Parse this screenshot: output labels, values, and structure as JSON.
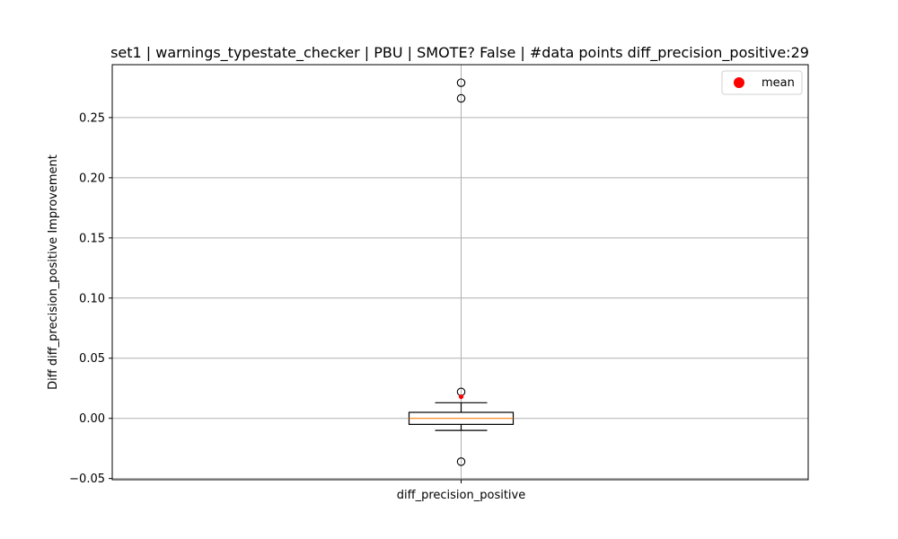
{
  "chart_data": {
    "type": "box",
    "title": "set1 | warnings_typestate_checker | PBU | SMOTE? False | #data points diff_precision_positive:29",
    "xlabel": "",
    "ylabel": "Diff diff_precision_positive Improvement",
    "categories": [
      "diff_precision_positive"
    ],
    "ylim": [
      -0.051,
      0.294
    ],
    "yticks": [
      -0.05,
      0.0,
      0.05,
      0.1,
      0.15,
      0.2,
      0.25
    ],
    "ytick_labels": [
      "−0.05",
      "0.00",
      "0.05",
      "0.10",
      "0.15",
      "0.20",
      "0.25"
    ],
    "grid": true,
    "legend": {
      "position": "top-right",
      "entries": [
        {
          "label": "mean",
          "color": "#ff0000",
          "marker": "circle"
        }
      ]
    },
    "box": {
      "category": "diff_precision_positive",
      "q1": -0.005,
      "median": 0.0,
      "q3": 0.005,
      "whisker_low": -0.01,
      "whisker_high": 0.013,
      "mean": 0.018,
      "outliers": [
        0.279,
        0.266,
        0.022,
        -0.036
      ]
    },
    "colors": {
      "box": "#000000",
      "median": "#ff7f0e",
      "mean": "#ff0000",
      "grid": "#b0b0b0"
    }
  }
}
